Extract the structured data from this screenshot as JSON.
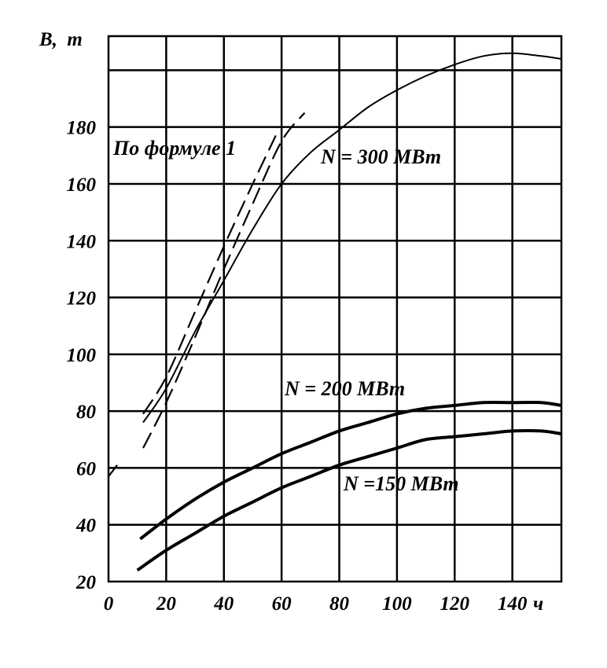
{
  "chart_data": {
    "type": "line",
    "ylabel": "B,  т",
    "xlabel": "ч",
    "xlim": [
      0,
      157
    ],
    "ylim": [
      20,
      212
    ],
    "grid": true,
    "x_ticks": [
      "0",
      "20",
      "40",
      "60",
      "80",
      "100",
      "120",
      "140"
    ],
    "y_ticks": [
      "20",
      "40",
      "60",
      "80",
      "100",
      "120",
      "140",
      "160",
      "180"
    ],
    "series": [
      {
        "name": "N = 300 МВт",
        "style": "solid-thin",
        "points": [
          [
            12,
            76
          ],
          [
            20,
            88
          ],
          [
            30,
            108
          ],
          [
            40,
            126
          ],
          [
            50,
            144
          ],
          [
            60,
            160
          ],
          [
            70,
            171
          ],
          [
            80,
            179
          ],
          [
            90,
            187
          ],
          [
            100,
            193
          ],
          [
            110,
            198
          ],
          [
            120,
            202
          ],
          [
            130,
            205
          ],
          [
            140,
            206
          ],
          [
            150,
            205
          ],
          [
            157,
            204
          ]
        ]
      },
      {
        "name": "По формуле 1",
        "style": "dashed",
        "segments": [
          [
            [
              0,
              57
            ],
            [
              3,
              61
            ]
          ],
          [
            [
              12,
              67
            ],
            [
              20,
              83
            ],
            [
              30,
              106
            ],
            [
              40,
              130
            ],
            [
              50,
              153
            ],
            [
              60,
              175
            ],
            [
              68,
              185
            ]
          ],
          [
            [
              12,
              79
            ],
            [
              20,
              92
            ],
            [
              30,
              115
            ],
            [
              40,
              138
            ],
            [
              50,
              160
            ],
            [
              58,
              177
            ]
          ]
        ]
      },
      {
        "name": "N = 200 МВт",
        "style": "solid-thick",
        "points": [
          [
            11,
            35
          ],
          [
            20,
            42
          ],
          [
            30,
            49
          ],
          [
            40,
            55
          ],
          [
            50,
            60
          ],
          [
            60,
            65
          ],
          [
            70,
            69
          ],
          [
            80,
            73
          ],
          [
            90,
            76
          ],
          [
            100,
            79
          ],
          [
            110,
            81
          ],
          [
            120,
            82
          ],
          [
            130,
            83
          ],
          [
            140,
            83
          ],
          [
            150,
            83
          ],
          [
            157,
            82
          ]
        ]
      },
      {
        "name": "N =150 МВт",
        "style": "solid-thick",
        "points": [
          [
            10,
            24
          ],
          [
            20,
            31
          ],
          [
            30,
            37
          ],
          [
            40,
            43
          ],
          [
            50,
            48
          ],
          [
            60,
            53
          ],
          [
            70,
            57
          ],
          [
            80,
            61
          ],
          [
            90,
            64
          ],
          [
            100,
            67
          ],
          [
            110,
            70
          ],
          [
            120,
            71
          ],
          [
            130,
            72
          ],
          [
            140,
            73
          ],
          [
            150,
            73
          ],
          [
            157,
            72
          ]
        ]
      }
    ],
    "annotations": {
      "formula": "По формуле 1",
      "n300": "N = 300 МВт",
      "n200": "N = 200 МВт",
      "n150": "N =150 МВт"
    }
  }
}
